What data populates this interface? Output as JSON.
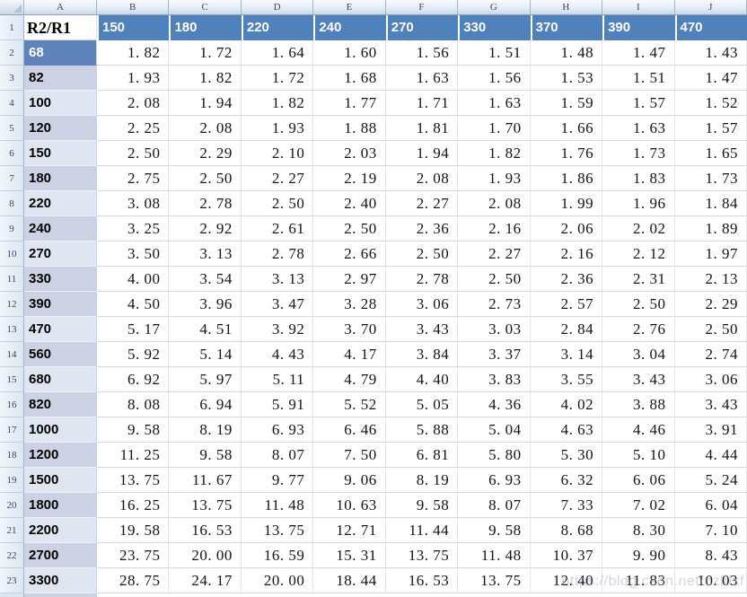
{
  "colors": {
    "accent_header_blue": "#4f81bd",
    "selected_cell_blue": "#5f84bc",
    "band_dark_lavender": "#ccd1e3",
    "band_light_lavender": "#dfe5f1"
  },
  "sheet": {
    "column_letters": [
      "A",
      "B",
      "C",
      "D",
      "E",
      "F",
      "G",
      "H",
      "I",
      "J"
    ],
    "row_numbers": [
      1,
      2,
      3,
      4,
      5,
      6,
      7,
      8,
      9,
      10,
      11,
      12,
      13,
      14,
      15,
      16,
      17,
      18,
      19,
      20,
      21,
      22,
      23
    ],
    "header_row": {
      "label": "R2/R1",
      "values": [
        "150",
        "180",
        "220",
        "240",
        "270",
        "330",
        "370",
        "390",
        "470"
      ]
    },
    "rows": [
      {
        "label": "68",
        "band": "selected",
        "values": [
          1.82,
          1.72,
          1.64,
          1.6,
          1.56,
          1.51,
          1.48,
          1.47,
          1.43
        ]
      },
      {
        "label": "82",
        "band": "dark",
        "values": [
          1.93,
          1.82,
          1.72,
          1.68,
          1.63,
          1.56,
          1.53,
          1.51,
          1.47
        ]
      },
      {
        "label": "100",
        "band": "light",
        "values": [
          2.08,
          1.94,
          1.82,
          1.77,
          1.71,
          1.63,
          1.59,
          1.57,
          1.52
        ]
      },
      {
        "label": "120",
        "band": "dark",
        "values": [
          2.25,
          2.08,
          1.93,
          1.88,
          1.81,
          1.7,
          1.66,
          1.63,
          1.57
        ]
      },
      {
        "label": "150",
        "band": "light",
        "values": [
          2.5,
          2.29,
          2.1,
          2.03,
          1.94,
          1.82,
          1.76,
          1.73,
          1.65
        ]
      },
      {
        "label": "180",
        "band": "dark",
        "values": [
          2.75,
          2.5,
          2.27,
          2.19,
          2.08,
          1.93,
          1.86,
          1.83,
          1.73
        ]
      },
      {
        "label": "220",
        "band": "light",
        "values": [
          3.08,
          2.78,
          2.5,
          2.4,
          2.27,
          2.08,
          1.99,
          1.96,
          1.84
        ]
      },
      {
        "label": "240",
        "band": "dark",
        "values": [
          3.25,
          2.92,
          2.61,
          2.5,
          2.36,
          2.16,
          2.06,
          2.02,
          1.89
        ]
      },
      {
        "label": "270",
        "band": "light",
        "values": [
          3.5,
          3.13,
          2.78,
          2.66,
          2.5,
          2.27,
          2.16,
          2.12,
          1.97
        ]
      },
      {
        "label": "330",
        "band": "dark",
        "values": [
          4.0,
          3.54,
          3.13,
          2.97,
          2.78,
          2.5,
          2.36,
          2.31,
          2.13
        ]
      },
      {
        "label": "390",
        "band": "dark",
        "values": [
          4.5,
          3.96,
          3.47,
          3.28,
          3.06,
          2.73,
          2.57,
          2.5,
          2.29
        ]
      },
      {
        "label": "470",
        "band": "light",
        "values": [
          5.17,
          4.51,
          3.92,
          3.7,
          3.43,
          3.03,
          2.84,
          2.76,
          2.5
        ]
      },
      {
        "label": "560",
        "band": "dark",
        "values": [
          5.92,
          5.14,
          4.43,
          4.17,
          3.84,
          3.37,
          3.14,
          3.04,
          2.74
        ]
      },
      {
        "label": "680",
        "band": "light",
        "values": [
          6.92,
          5.97,
          5.11,
          4.79,
          4.4,
          3.83,
          3.55,
          3.43,
          3.06
        ]
      },
      {
        "label": "820",
        "band": "dark",
        "values": [
          8.08,
          6.94,
          5.91,
          5.52,
          5.05,
          4.36,
          4.02,
          3.88,
          3.43
        ]
      },
      {
        "label": "1000",
        "band": "light",
        "values": [
          9.58,
          8.19,
          6.93,
          6.46,
          5.88,
          5.04,
          4.63,
          4.46,
          3.91
        ]
      },
      {
        "label": "1200",
        "band": "dark",
        "values": [
          11.25,
          9.58,
          8.07,
          7.5,
          6.81,
          5.8,
          5.3,
          5.1,
          4.44
        ]
      },
      {
        "label": "1500",
        "band": "light",
        "values": [
          13.75,
          11.67,
          9.77,
          9.06,
          8.19,
          6.93,
          6.32,
          6.06,
          5.24
        ]
      },
      {
        "label": "1800",
        "band": "dark",
        "values": [
          16.25,
          13.75,
          11.48,
          10.63,
          9.58,
          8.07,
          7.33,
          7.02,
          6.04
        ]
      },
      {
        "label": "2200",
        "band": "light",
        "values": [
          19.58,
          16.53,
          13.75,
          12.71,
          11.44,
          9.58,
          8.68,
          8.3,
          7.1
        ]
      },
      {
        "label": "2700",
        "band": "dark",
        "values": [
          23.75,
          20.0,
          16.59,
          15.31,
          13.75,
          11.48,
          10.37,
          9.9,
          8.43
        ]
      },
      {
        "label": "3300",
        "band": "light",
        "values": [
          28.75,
          24.17,
          20.0,
          18.44,
          16.53,
          13.75,
          12.4,
          11.83,
          10.03
        ]
      }
    ],
    "watermark": "https://blog.csdn.net/nzldxf"
  }
}
